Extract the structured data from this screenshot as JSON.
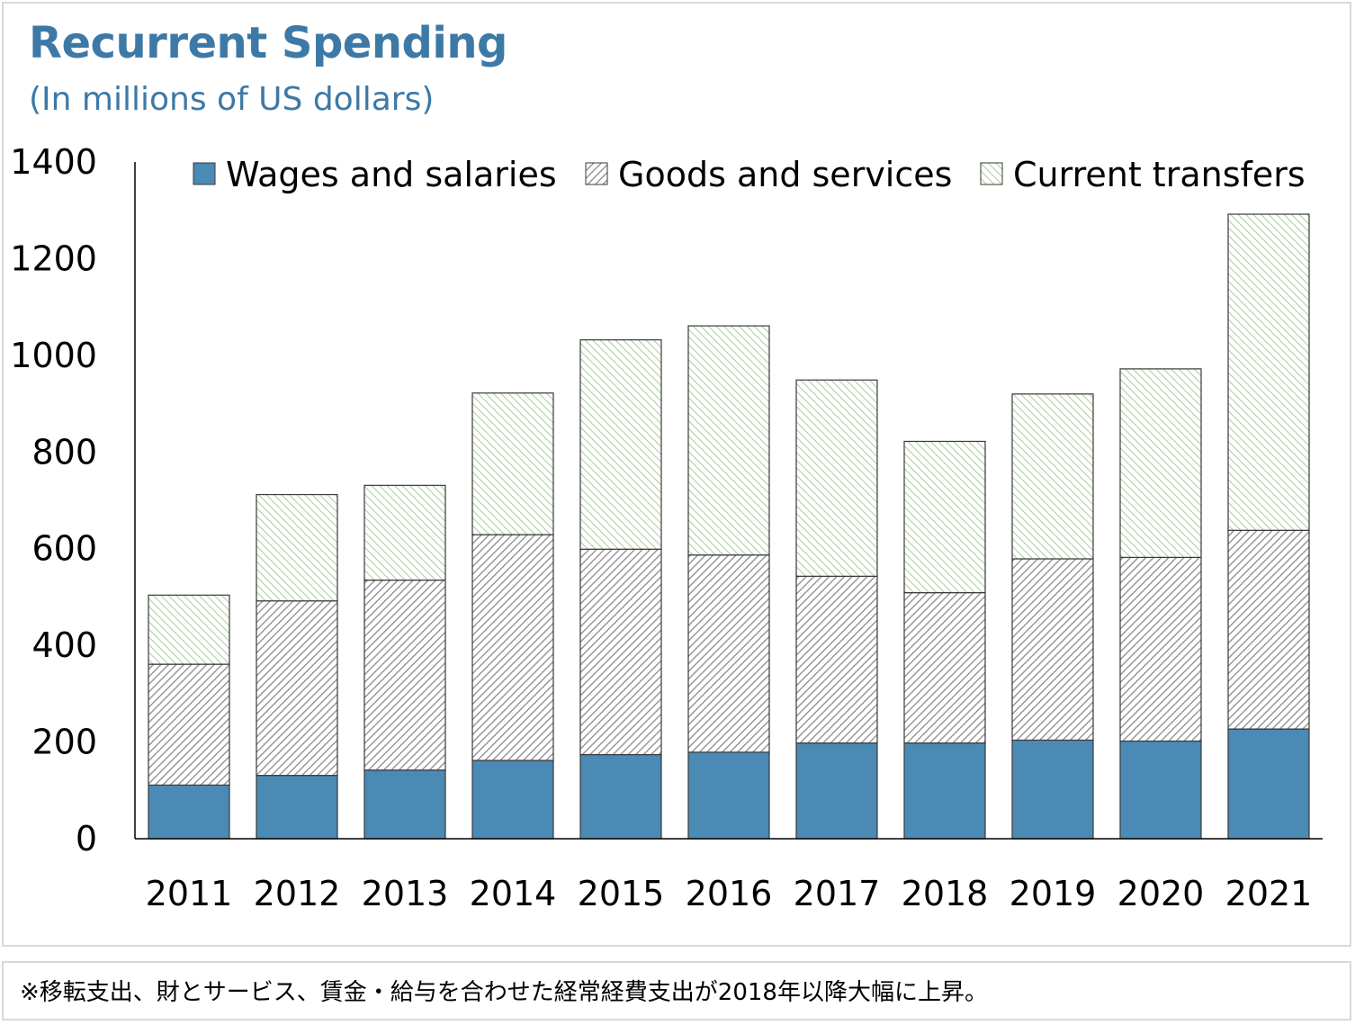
{
  "title": "Recurrent Spending",
  "subtitle": "(In millions of US dollars)",
  "note": "※移転支出、財とサービス、賃金・給与を合わせた経常経費支出が2018年以降大幅に上昇。",
  "colors": {
    "title": "#3d79a6",
    "wages": "#4a8ab4",
    "goods_line": "#8a8a8a",
    "transfers_line": "#a8cc9e"
  },
  "chart_data": {
    "type": "bar",
    "stacked": true,
    "title": "Recurrent Spending",
    "subtitle": "(In millions of US dollars)",
    "categories": [
      "2011",
      "2012",
      "2013",
      "2014",
      "2015",
      "2016",
      "2017",
      "2018",
      "2019",
      "2020",
      "2021"
    ],
    "series": [
      {
        "name": "Wages and salaries",
        "values": [
          111,
          131,
          142,
          162,
          174,
          179,
          198,
          198,
          204,
          202,
          227
        ]
      },
      {
        "name": "Goods and services",
        "values": [
          250,
          361,
          393,
          467,
          425,
          408,
          345,
          311,
          375,
          380,
          411
        ]
      },
      {
        "name": "Current transfers",
        "values": [
          143,
          220,
          196,
          293,
          433,
          474,
          406,
          313,
          341,
          390,
          654
        ]
      }
    ],
    "ylim": [
      0,
      1400
    ],
    "yticks": [
      0,
      200,
      400,
      600,
      800,
      1000,
      1200,
      1400
    ],
    "grid": false,
    "legend": "top"
  }
}
